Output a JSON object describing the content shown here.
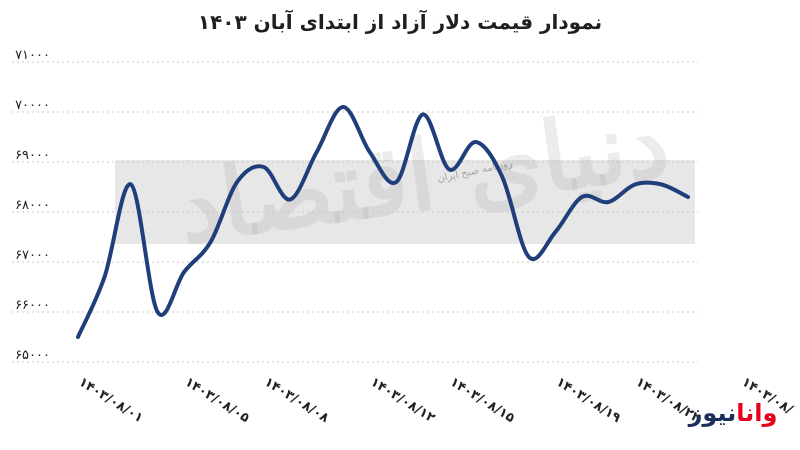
{
  "title": "نمودار قیمت دلار آزاد از ابتدای آبان ۱۴۰۳",
  "watermark": {
    "main": "دنیای اقتصاد",
    "sub": "روزنامه صبح ایران"
  },
  "logo": {
    "part_a": "وانا",
    "part_b": "نیوز"
  },
  "colors": {
    "line": "#1f3f7a",
    "grid": "#c8c8c8",
    "band": "#e7e7e7",
    "logo_red": "#e5001c",
    "logo_blue": "#1b2f5a"
  },
  "chart_data": {
    "type": "line",
    "title": "نمودار قیمت دلار آزاد از ابتدای آبان ۱۴۰۳",
    "xlabel": "",
    "ylabel": "",
    "ylim": [
      65000,
      71000
    ],
    "grid": "horizontal-dotted",
    "y_ticks": [
      "۷۱۰۰۰",
      "۷۰۰۰۰",
      "۶۹۰۰۰",
      "۶۸۰۰۰",
      "۶۷۰۰۰",
      "۶۶۰۰۰",
      "۶۵۰۰۰"
    ],
    "y_tick_values": [
      71000,
      70000,
      69000,
      68000,
      67000,
      66000,
      65000
    ],
    "x_tick_labels": [
      "۱۴۰۳/۰۸/۰۱",
      "۱۴۰۳/۰۸/۰۵",
      "۱۴۰۳/۰۸/۰۸",
      "۱۴۰۳/۰۸/۱۲",
      "۱۴۰۳/۰۸/۱۵",
      "۱۴۰۳/۰۸/۱۹",
      "۱۴۰۳/۰۸/۲۲",
      "۱۴۰۳/۰۸/"
    ],
    "x_tick_indices": [
      0,
      4,
      7,
      11,
      14,
      18,
      21,
      25
    ],
    "values": [
      65500,
      66700,
      68550,
      66000,
      66800,
      67400,
      68600,
      68900,
      68250,
      69200,
      70100,
      69200,
      68600,
      69950,
      68850,
      69400,
      68700,
      67100,
      67600,
      68300,
      68200,
      68550,
      68550,
      68300
    ]
  }
}
